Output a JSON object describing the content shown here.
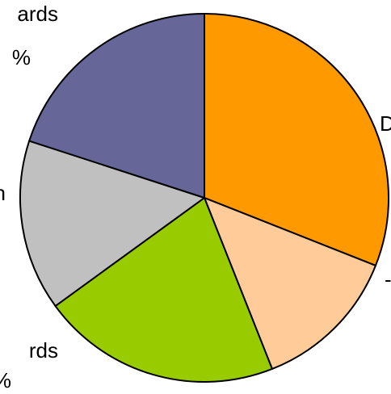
{
  "chart_data": {
    "type": "pie",
    "title": "",
    "slices": [
      {
        "label": "D",
        "value": 31,
        "color": "#FF9900",
        "label_lines": [
          "D"
        ]
      },
      {
        "label": "",
        "value": 13,
        "color": "#FFCC99",
        "label_lines": [
          "-"
        ]
      },
      {
        "label": "",
        "value": 21,
        "color": "#99CC00",
        "label_lines": [
          "rds",
          "%"
        ]
      },
      {
        "label": "",
        "value": 15,
        "color": "#C0C0C0",
        "label_lines": [
          "n"
        ]
      },
      {
        "label": "",
        "value": 20,
        "color": "#666699",
        "label_lines": [
          "ards",
          "%"
        ]
      }
    ]
  }
}
